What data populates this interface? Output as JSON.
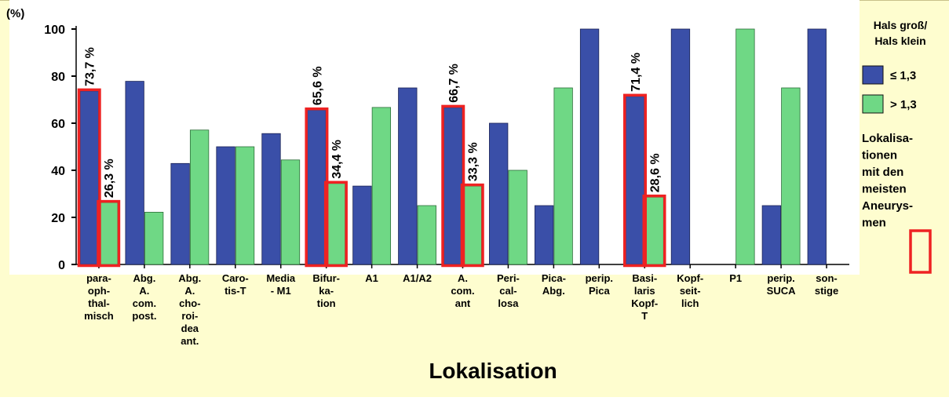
{
  "chart_data": {
    "type": "bar",
    "ylabel": "(%)",
    "xlabel": "Lokalisation",
    "ylim": [
      0,
      100
    ],
    "yticks": [
      0,
      20,
      40,
      60,
      80,
      100
    ],
    "grid": false,
    "legend_placement": "right",
    "legend_title": [
      "Hals groß/",
      "Hals klein"
    ],
    "categories": [
      [
        "para-",
        "oph-",
        "thal-",
        "misch"
      ],
      [
        "Abg.",
        "A.",
        "com.",
        "post."
      ],
      [
        "Abg.",
        "A.",
        "cho-",
        "roi-",
        "dea",
        "ant."
      ],
      [
        "Caro-",
        "tis-T"
      ],
      [
        "Media",
        "- M1"
      ],
      [
        "Bifur-",
        "ka-",
        "tion"
      ],
      [
        "A1"
      ],
      [
        "A1/A2"
      ],
      [
        "A.",
        "com.",
        "ant"
      ],
      [
        "Peri-",
        "cal-",
        "losa"
      ],
      [
        "Pica-",
        "Abg."
      ],
      [
        "perip.",
        "Pica"
      ],
      [
        "Basi-",
        "laris",
        "Kopf-",
        "T"
      ],
      [
        "Kopf-",
        "seit-",
        "lich"
      ],
      [
        "P1"
      ],
      [
        "perip.",
        "SUCA"
      ],
      [
        "son-",
        "stige"
      ]
    ],
    "series": [
      {
        "name": "≤ 1,3",
        "color": "#3a4fa8",
        "values": [
          73.7,
          77.8,
          42.9,
          50,
          55.6,
          65.6,
          33.3,
          75,
          66.7,
          60,
          25,
          100,
          71.4,
          100,
          0,
          25,
          100
        ]
      },
      {
        "name": "> 1,3",
        "color": "#6fd885",
        "values": [
          26.3,
          22.2,
          57.1,
          50,
          44.4,
          34.4,
          66.7,
          25,
          33.3,
          40,
          75,
          0,
          28.6,
          0,
          100,
          75,
          0
        ]
      }
    ],
    "highlights": [
      {
        "category": 0,
        "labels": [
          "73,7 %",
          "26,3 %"
        ]
      },
      {
        "category": 5,
        "labels": [
          "65,6 %",
          "34,4 %"
        ]
      },
      {
        "category": 8,
        "labels": [
          "66,7 %",
          "33,3 %"
        ]
      },
      {
        "category": 12,
        "labels": [
          "71,4 %",
          "28,6 %"
        ]
      }
    ],
    "highlight_legend": [
      "Lokalisa-",
      "tionen",
      "mit den",
      "meisten",
      "Aneurys-",
      "men"
    ],
    "colors": {
      "background": "#fefdcf",
      "plot": "#ffffff",
      "highlight": "#ee2222"
    }
  }
}
